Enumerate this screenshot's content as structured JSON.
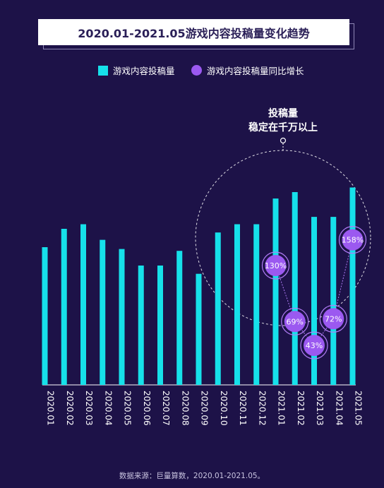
{
  "title": "2020.01-2021.05游戏内容投稿量变化趋势",
  "legend": {
    "bars": "游戏内容投稿量",
    "dots": "游戏内容投稿量同比增长"
  },
  "annotation": {
    "line1": "投稿量",
    "line2": "稳定在千万以上"
  },
  "source": "数据来源：巨量算数，2020.01-2021.05。",
  "colors": {
    "background": "#1d1248",
    "bar": "#16e0ea",
    "dot": "#9b59f0",
    "title_bg": "#ffffff",
    "title_text": "#2a1f57"
  },
  "chart_data": {
    "type": "bar",
    "categories": [
      "2020.01",
      "2020.02",
      "2020.03",
      "2020.04",
      "2020.05",
      "2020.06",
      "2020.07",
      "2020.08",
      "2020.09",
      "2020.10",
      "2020.11",
      "2020.12",
      "2021.01",
      "2021.02",
      "2021.03",
      "2021.04",
      "2021.05"
    ],
    "values": [
      150,
      170,
      175,
      158,
      148,
      130,
      130,
      146,
      121,
      166,
      175,
      175,
      203,
      210,
      183,
      183,
      215
    ],
    "ylim": [
      0,
      250
    ],
    "grid": false,
    "legend_position": "top",
    "overlay_series": {
      "type": "line-dots",
      "x": [
        "2021.01",
        "2021.02",
        "2021.03",
        "2021.04",
        "2021.05"
      ],
      "values": [
        130,
        69,
        43,
        72,
        158
      ],
      "labels": [
        "130%",
        "69%",
        "43%",
        "72%",
        "158%"
      ],
      "ylim": [
        0,
        250
      ]
    }
  }
}
